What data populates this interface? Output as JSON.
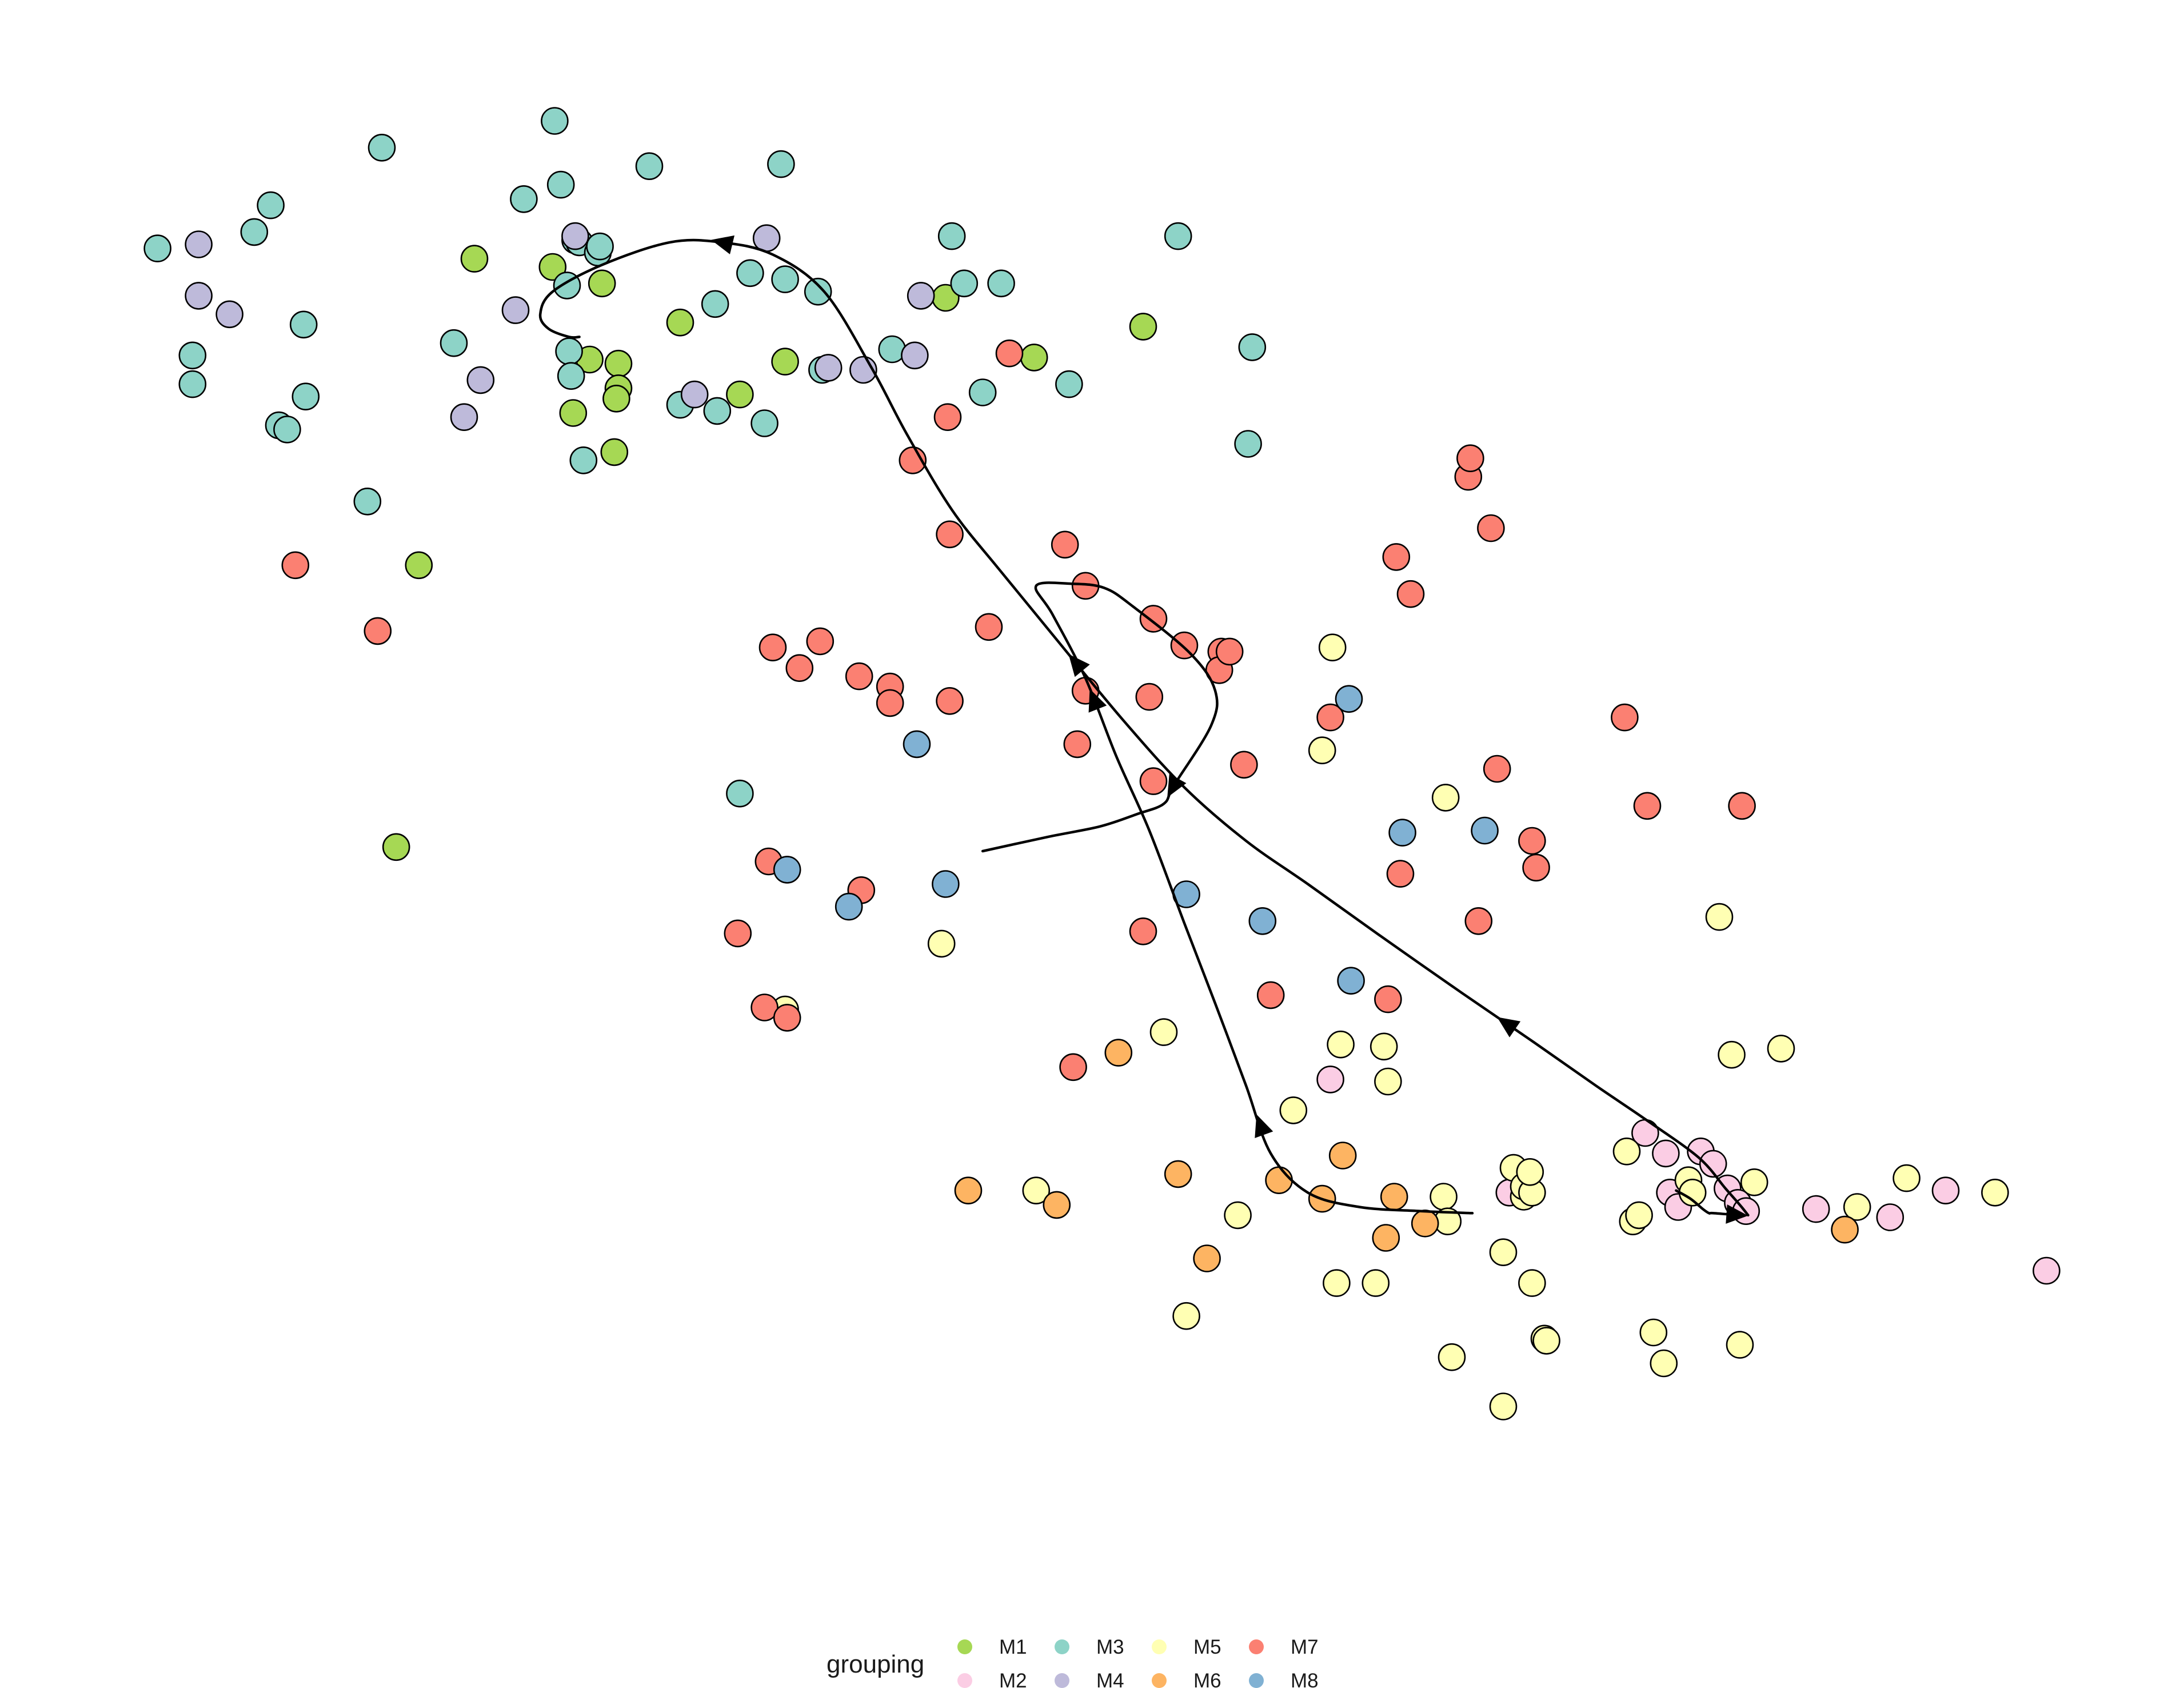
{
  "chart_data": {
    "type": "scatter",
    "title": "",
    "xlabel": "",
    "ylabel": "",
    "axes_visible": false,
    "grid": false,
    "xlim": [
      0,
      1000
    ],
    "ylim": [
      -742,
      0
    ],
    "legend": {
      "title": "grouping",
      "placement": "bottom",
      "entries": [
        "M1",
        "M2",
        "M3",
        "M4",
        "M5",
        "M6",
        "M7",
        "M8"
      ]
    },
    "colors": {
      "M1": "#a6d854",
      "M2": "#fbcde4",
      "M3": "#8dd3c7",
      "M4": "#bebada",
      "M5": "#ffffb3",
      "M6": "#fdb462",
      "M7": "#fb8072",
      "M8": "#80b1d3"
    },
    "series": [
      {
        "name": "M1",
        "points": [
          [
            162,
            -384
          ],
          [
            200,
            -98
          ],
          [
            238,
            -102
          ],
          [
            256,
            -147
          ],
          [
            248,
            -173
          ],
          [
            268,
            -192
          ],
          [
            270,
            -149
          ],
          [
            262,
            -110
          ],
          [
            270,
            -161
          ],
          [
            269,
            -166
          ],
          [
            300,
            -129
          ],
          [
            329,
            -164
          ],
          [
            351,
            -148
          ],
          [
            429,
            -117
          ],
          [
            472,
            -146
          ],
          [
            525,
            -131
          ],
          [
            173,
            -247
          ]
        ]
      },
      {
        "name": "M2",
        "points": [
          [
            616,
            -497
          ],
          [
            703,
            -552
          ],
          [
            769,
            -523
          ],
          [
            779,
            -533
          ],
          [
            781,
            -552
          ],
          [
            785,
            -559
          ],
          [
            796,
            -532
          ],
          [
            802,
            -538
          ],
          [
            809,
            -550
          ],
          [
            814,
            -557
          ],
          [
            818,
            -561
          ],
          [
            852,
            -560
          ],
          [
            888,
            -564
          ],
          [
            915,
            -551
          ],
          [
            964,
            -590
          ]
        ]
      },
      {
        "name": "M3",
        "points": [
          [
            46,
            -93
          ],
          [
            63,
            -145
          ],
          [
            63,
            -159
          ],
          [
            93,
            -85
          ],
          [
            101,
            -72
          ],
          [
            105,
            -179
          ],
          [
            109,
            -181
          ],
          [
            117,
            -130
          ],
          [
            118,
            -165
          ],
          [
            148,
            -216
          ],
          [
            155,
            -44
          ],
          [
            190,
            -139
          ],
          [
            224,
            -69
          ],
          [
            239,
            -31
          ],
          [
            242,
            -62
          ],
          [
            245,
            -111
          ],
          [
            246,
            -143
          ],
          [
            247,
            -155
          ],
          [
            249,
            -89
          ],
          [
            251,
            -90
          ],
          [
            253,
            -196
          ],
          [
            260,
            -95
          ],
          [
            261,
            -92
          ],
          [
            285,
            -53
          ],
          [
            300,
            -169
          ],
          [
            317,
            -120
          ],
          [
            318,
            -172
          ],
          [
            329,
            -358
          ],
          [
            334,
            -105
          ],
          [
            341,
            -178
          ],
          [
            349,
            -52
          ],
          [
            351,
            -108
          ],
          [
            367,
            -114
          ],
          [
            369,
            -152
          ],
          [
            403,
            -142
          ],
          [
            432,
            -87
          ],
          [
            438,
            -110
          ],
          [
            447,
            -163
          ],
          [
            456,
            -110
          ],
          [
            489,
            -159
          ],
          [
            542,
            -87
          ],
          [
            578,
            -141
          ],
          [
            576,
            -188
          ]
        ]
      },
      {
        "name": "M4",
        "points": [
          [
            66,
            -116
          ],
          [
            66,
            -91
          ],
          [
            81,
            -125
          ],
          [
            195,
            -175
          ],
          [
            203,
            -157
          ],
          [
            220,
            -123
          ],
          [
            249,
            -87
          ],
          [
            307,
            -164
          ],
          [
            342,
            -88
          ],
          [
            372,
            -151
          ],
          [
            389,
            -152
          ],
          [
            414,
            -145
          ],
          [
            417,
            -116
          ]
        ]
      },
      {
        "name": "M5",
        "points": [
          [
            617,
            -287
          ],
          [
            612,
            -337
          ],
          [
            672,
            -360
          ],
          [
            427,
            -431
          ],
          [
            351,
            -463
          ],
          [
            473,
            -551
          ],
          [
            535,
            -474
          ],
          [
            546,
            -612
          ],
          [
            571,
            -563
          ],
          [
            598,
            -512
          ],
          [
            619,
            -596
          ],
          [
            621,
            -480
          ],
          [
            638,
            -596
          ],
          [
            642,
            -481
          ],
          [
            644,
            -498
          ],
          [
            671,
            -554
          ],
          [
            673,
            -566
          ],
          [
            700,
            -581
          ],
          [
            705,
            -540
          ],
          [
            710,
            -554
          ],
          [
            710,
            -549
          ],
          [
            714,
            -552
          ],
          [
            713,
            -542
          ],
          [
            720,
            -623
          ],
          [
            700,
            -656
          ],
          [
            714,
            -596
          ],
          [
            721,
            -624
          ],
          [
            760,
            -532
          ],
          [
            763,
            -566
          ],
          [
            766,
            -563
          ],
          [
            773,
            -620
          ],
          [
            778,
            -635
          ],
          [
            790,
            -546
          ],
          [
            792,
            -552
          ],
          [
            805,
            -418
          ],
          [
            811,
            -485
          ],
          [
            815,
            -626
          ],
          [
            822,
            -547
          ],
          [
            835,
            -482
          ],
          [
            872,
            -559
          ],
          [
            896,
            -545
          ],
          [
            939,
            -552
          ],
          [
            675,
            -632
          ]
        ]
      },
      {
        "name": "M6",
        "points": [
          [
            440,
            -551
          ],
          [
            483,
            -558
          ],
          [
            513,
            -484
          ],
          [
            542,
            -543
          ],
          [
            556,
            -584
          ],
          [
            591,
            -546
          ],
          [
            612,
            -555
          ],
          [
            622,
            -534
          ],
          [
            643,
            -574
          ],
          [
            647,
            -554
          ],
          [
            662,
            -567
          ],
          [
            866,
            -570
          ]
        ]
      },
      {
        "name": "M7",
        "points": [
          [
            113,
            -247
          ],
          [
            153,
            -279
          ],
          [
            345,
            -287
          ],
          [
            358,
            -297
          ],
          [
            368,
            -284
          ],
          [
            387,
            -301
          ],
          [
            402,
            -306
          ],
          [
            402,
            -314
          ],
          [
            431,
            -313
          ],
          [
            413,
            -196
          ],
          [
            430,
            -175
          ],
          [
            431,
            -232
          ],
          [
            460,
            -144
          ],
          [
            450,
            -277
          ],
          [
            487,
            -237
          ],
          [
            497,
            -257
          ],
          [
            493,
            -334
          ],
          [
            497,
            -308
          ],
          [
            525,
            -425
          ],
          [
            530,
            -352
          ],
          [
            530,
            -273
          ],
          [
            545,
            -286
          ],
          [
            563,
            -289
          ],
          [
            562,
            -298
          ],
          [
            567,
            -289
          ],
          [
            574,
            -344
          ],
          [
            616,
            -321
          ],
          [
            644,
            -458
          ],
          [
            648,
            -243
          ],
          [
            655,
            -261
          ],
          [
            650,
            -397
          ],
          [
            683,
            -204
          ],
          [
            684,
            -195
          ],
          [
            688,
            -420
          ],
          [
            694,
            -229
          ],
          [
            697,
            -346
          ],
          [
            714,
            -381
          ],
          [
            716,
            -394
          ],
          [
            759,
            -321
          ],
          [
            770,
            -364
          ],
          [
            816,
            -364
          ],
          [
            528,
            -311
          ],
          [
            587,
            -456
          ],
          [
            491,
            -491
          ],
          [
            343,
            -391
          ],
          [
            341,
            -462
          ],
          [
            352,
            -467
          ],
          [
            388,
            -405
          ],
          [
            328,
            -426
          ]
        ]
      },
      {
        "name": "M8",
        "points": [
          [
            415,
            -334
          ],
          [
            352,
            -395
          ],
          [
            382,
            -413
          ],
          [
            429,
            -402
          ],
          [
            546,
            -407
          ],
          [
            583,
            -420
          ],
          [
            625,
            -312
          ],
          [
            651,
            -377
          ],
          [
            691,
            -376
          ],
          [
            626,
            -449
          ]
        ]
      }
    ],
    "trajectories": [
      {
        "arrows": 3,
        "points": [
          [
            819,
            -563
          ],
          [
            815,
            -558
          ],
          [
            808,
            -550
          ],
          [
            795,
            -535
          ],
          [
            770,
            -517
          ],
          [
            745,
            -500
          ],
          [
            715,
            -479
          ],
          [
            680,
            -455
          ],
          [
            640,
            -427
          ],
          [
            605,
            -402
          ],
          [
            575,
            -381
          ],
          [
            545,
            -355
          ],
          [
            515,
            -322
          ],
          [
            482,
            -282
          ],
          [
            455,
            -249
          ],
          [
            432,
            -220
          ],
          [
            410,
            -183
          ],
          [
            393,
            -151
          ],
          [
            370,
            -114
          ],
          [
            345,
            -96
          ],
          [
            320,
            -90
          ],
          [
            295,
            -90
          ],
          [
            262,
            -101
          ],
          [
            238,
            -114
          ],
          [
            232,
            -125
          ],
          [
            236,
            -132
          ],
          [
            246,
            -136
          ],
          [
            251,
            -136
          ]
        ]
      },
      {
        "arrows": 3,
        "points": [
          [
            685,
            -562
          ],
          [
            660,
            -561
          ],
          [
            630,
            -559
          ],
          [
            605,
            -552
          ],
          [
            587,
            -533
          ],
          [
            575,
            -500
          ],
          [
            560,
            -460
          ],
          [
            545,
            -421
          ],
          [
            528,
            -376
          ],
          [
            512,
            -340
          ],
          [
            497,
            -302
          ],
          [
            481,
            -271
          ],
          [
            473,
            -257
          ],
          [
            490,
            -256
          ],
          [
            506,
            -258
          ],
          [
            520,
            -267
          ],
          [
            548,
            -290
          ],
          [
            560,
            -308
          ],
          [
            558,
            -325
          ],
          [
            540,
            -354
          ],
          [
            535,
            -363
          ],
          [
            522,
            -368
          ],
          [
            504,
            -374
          ],
          [
            479,
            -379
          ],
          [
            447,
            -386
          ]
        ]
      },
      {
        "arrows": 1,
        "points": [
          [
            784,
            -551
          ],
          [
            791,
            -555
          ],
          [
            797,
            -560
          ],
          [
            800,
            -562
          ],
          [
            802,
            -562
          ],
          [
            816,
            -563
          ],
          [
            815,
            -562
          ]
        ]
      }
    ]
  }
}
